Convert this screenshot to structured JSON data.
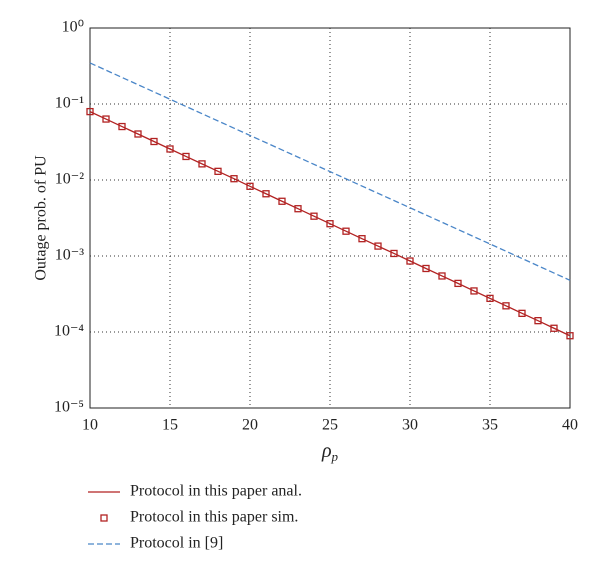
{
  "chart_data": {
    "type": "line",
    "y_label": "Outage prob. of PU",
    "x_label_symbol": "ρ",
    "x_label_sub": "p",
    "xlim": [
      10,
      40
    ],
    "xticks": [
      10,
      15,
      20,
      25,
      30,
      35,
      40
    ],
    "ylim": [
      1e-05,
      1
    ],
    "log_y": true,
    "yticks": [
      {
        "value": 1e-05,
        "label": "10⁻⁵"
      },
      {
        "value": 0.0001,
        "label": "10⁻⁴"
      },
      {
        "value": 0.001,
        "label": "10⁻³"
      },
      {
        "value": 0.01,
        "label": "10⁻²"
      },
      {
        "value": 0.1,
        "label": "10⁻¹"
      },
      {
        "value": 1,
        "label": "10⁰"
      }
    ],
    "grid": true,
    "series": [
      {
        "name": "Protocol in this paper anal.",
        "color": "#b22222",
        "style": "solid",
        "x": [
          10,
          11,
          12,
          13,
          14,
          15,
          16,
          17,
          18,
          19,
          20,
          21,
          22,
          23,
          24,
          25,
          26,
          27,
          28,
          29,
          30,
          31,
          32,
          33,
          34,
          35,
          36,
          37,
          38,
          39,
          40
        ],
        "values": [
          0.0794,
          0.0634,
          0.0505,
          0.0403,
          0.0321,
          0.0256,
          0.0204,
          0.0163,
          0.013,
          0.0104,
          0.00826,
          0.00659,
          0.00525,
          0.00419,
          0.00334,
          0.00266,
          0.00212,
          0.00169,
          0.00135,
          0.00108,
          0.000859,
          0.000685,
          0.000546,
          0.000436,
          0.000347,
          0.000277,
          0.000221,
          0.000176,
          0.000141,
          0.000112,
          8.93e-05
        ]
      },
      {
        "name": "Protocol in this paper sim.",
        "color": "#b22222",
        "style": "marker",
        "x": [
          10,
          11,
          12,
          13,
          14,
          15,
          16,
          17,
          18,
          19,
          20,
          21,
          22,
          23,
          24,
          25,
          26,
          27,
          28,
          29,
          30,
          31,
          32,
          33,
          34,
          35,
          36,
          37,
          38,
          39,
          40
        ],
        "values": [
          0.0794,
          0.0634,
          0.0505,
          0.0403,
          0.0321,
          0.0256,
          0.0204,
          0.0163,
          0.013,
          0.0104,
          0.00826,
          0.00659,
          0.00525,
          0.00419,
          0.00334,
          0.00266,
          0.00212,
          0.00169,
          0.00135,
          0.00108,
          0.000859,
          0.000685,
          0.000546,
          0.000436,
          0.000347,
          0.000277,
          0.000221,
          0.000176,
          0.000141,
          0.000112,
          8.93e-05
        ]
      },
      {
        "name": "Protocol in [9]",
        "color": "#4a86c8",
        "style": "dashed",
        "x": [
          10,
          15,
          20,
          25,
          30,
          35,
          40
        ],
        "values": [
          0.347,
          0.1156,
          0.0386,
          0.0129,
          0.00431,
          0.00144,
          0.000479
        ]
      }
    ]
  }
}
